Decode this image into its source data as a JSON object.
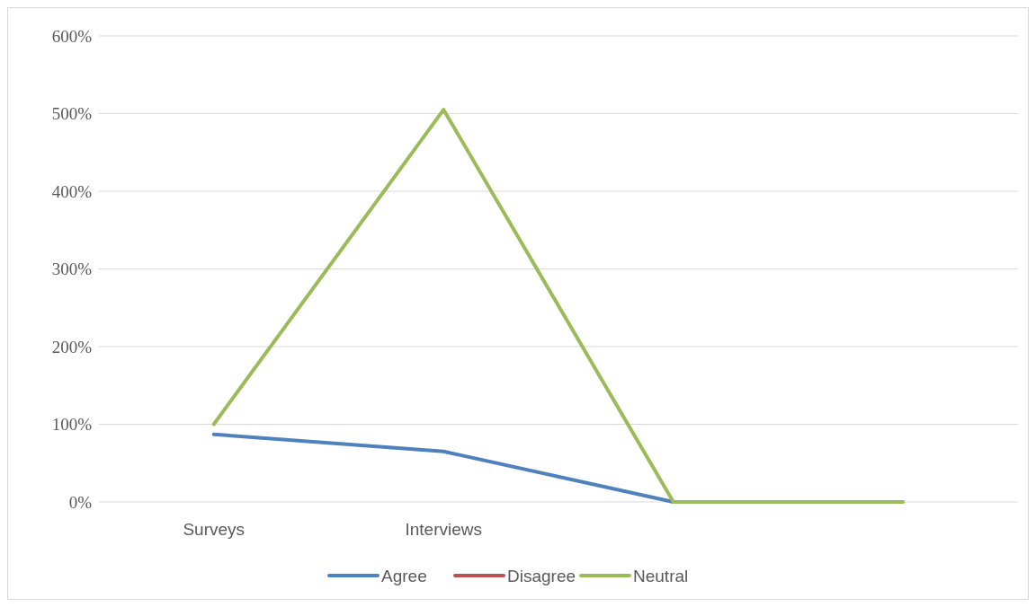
{
  "chart_data": {
    "type": "line",
    "categories": [
      "Surveys",
      "Interviews",
      null,
      null
    ],
    "series": [
      {
        "name": "Agree",
        "color": "#4f81bd",
        "values": [
          87,
          65,
          0,
          null
        ]
      },
      {
        "name": "Disagree",
        "color": "#c0504d",
        "values": [
          null,
          null,
          null,
          null
        ]
      },
      {
        "name": "Neutral",
        "color": "#9bbb59",
        "values": [
          100,
          505,
          0,
          0
        ]
      }
    ],
    "ylim": [
      0,
      600
    ],
    "yticks": [
      {
        "value": 0,
        "label": "0%"
      },
      {
        "value": 100,
        "label": "100%"
      },
      {
        "value": 200,
        "label": "200%"
      },
      {
        "value": 300,
        "label": "300%"
      },
      {
        "value": 400,
        "label": "400%"
      },
      {
        "value": 500,
        "label": "500%"
      },
      {
        "value": 600,
        "label": "600%"
      }
    ],
    "grid": "y",
    "legend": "bottom",
    "marker": "none",
    "line_style": "solid"
  }
}
